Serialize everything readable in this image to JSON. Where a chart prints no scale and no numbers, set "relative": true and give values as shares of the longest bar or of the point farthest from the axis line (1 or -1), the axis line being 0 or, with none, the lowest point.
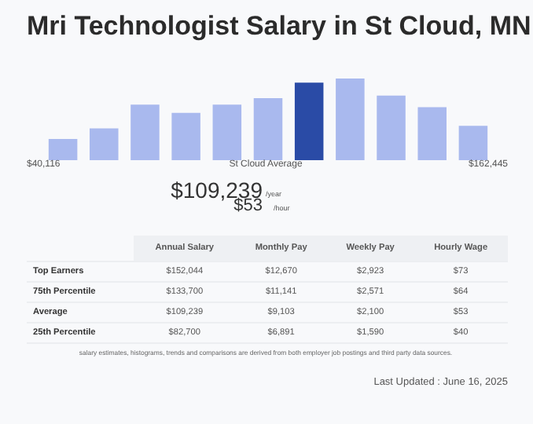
{
  "chart_data": [
    {
      "type": "bar",
      "title": "Mri Technologist Salary in St Cloud, MN",
      "relative": true,
      "categories": [
        null,
        null,
        null,
        null,
        null,
        null,
        null,
        null,
        null,
        null,
        null
      ],
      "values": [
        0.26,
        0.39,
        0.68,
        0.58,
        0.68,
        0.76,
        0.95,
        1,
        0.79,
        0.65,
        0.42
      ],
      "colors": [
        "#a9b9ee",
        "#a9b9ee",
        "#a9b9ee",
        "#a9b9ee",
        "#a9b9ee",
        "#a9b9ee",
        "#2a4ba6",
        "#a9b9ee",
        "#a9b9ee",
        "#a9b9ee",
        "#a9b9ee"
      ],
      "annotations": [
        "$40,116",
        "St Cloud Average",
        "$162,445",
        "$109,239",
        "/year",
        "$53",
        "/hour"
      ]
    },
    {
      "type": "other",
      "annotations": [
        "Annual Salary",
        "Monthly Pay",
        "Weekly Pay",
        "Hourly Wage",
        "Top Earners",
        "$152,044",
        "$12,670",
        "$2,923",
        "$73",
        "75th Percentile",
        "$133,700",
        "$11,141",
        "$2,571",
        "$64",
        "Average",
        "$109,239",
        "$9,103",
        "$2,100",
        "$53",
        "25th Percentile",
        "$82,700",
        "$6,891",
        "$1,590",
        "$40",
        "salary estimates, histograms, trends and comparisons are derived from both employer job postings and third party data sources.",
        "Last Updated : June 16, 2025"
      ]
    }
  ]
}
